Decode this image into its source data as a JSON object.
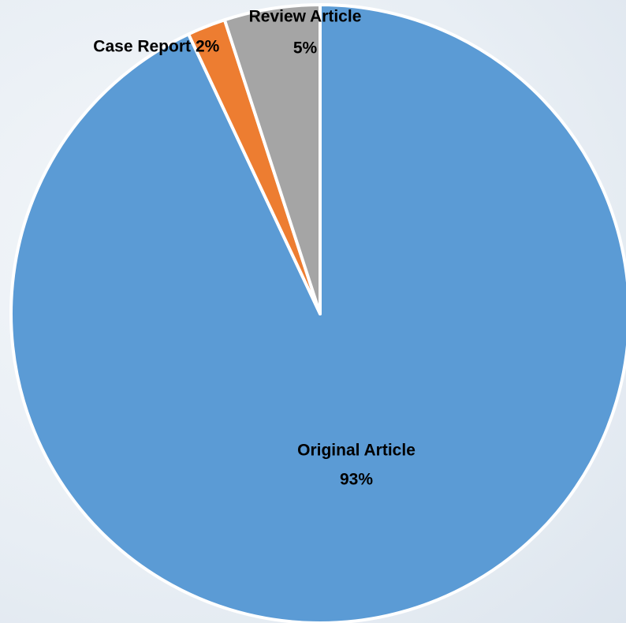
{
  "chart_data": {
    "type": "pie",
    "categories": [
      "Original Article",
      "Case Report",
      "Review Article"
    ],
    "values": [
      93,
      2,
      5
    ],
    "value_labels": [
      "93%",
      "2%",
      "5%"
    ],
    "colors": [
      "#5b9bd5",
      "#ed7d31",
      "#a5a5a5"
    ]
  }
}
